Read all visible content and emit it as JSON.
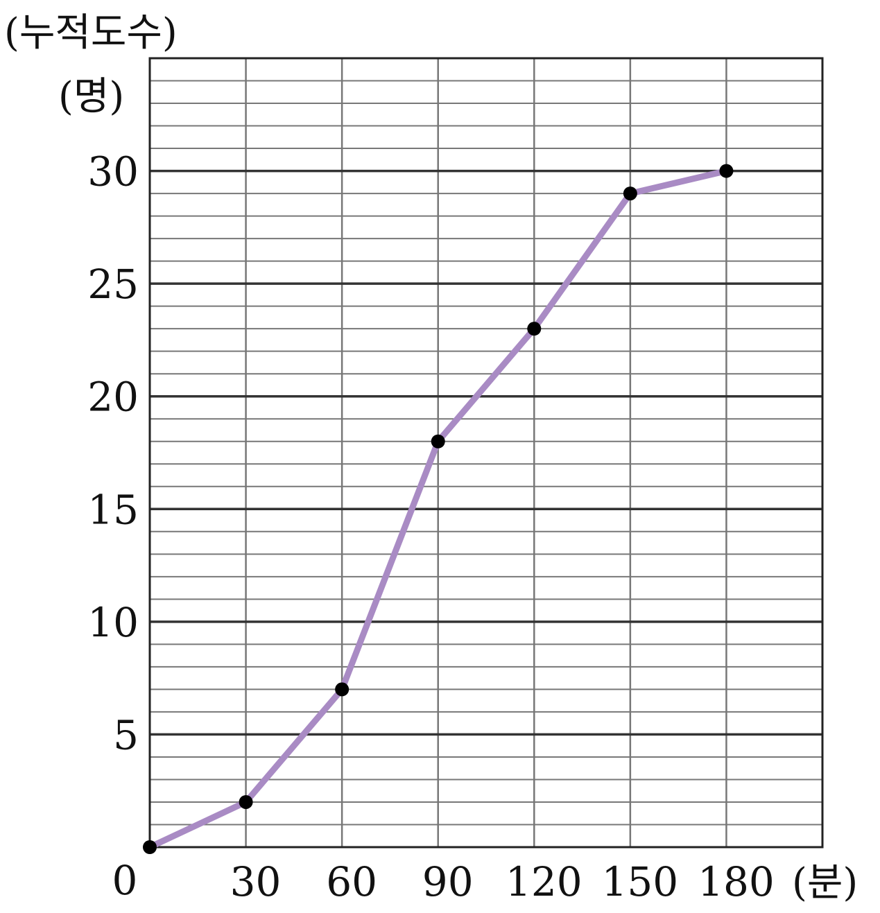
{
  "chart_data": {
    "type": "line",
    "title": "",
    "ylabel_line1": "(누적도수)",
    "ylabel_line2": "(명)",
    "xlabel": "(분)",
    "origin_label": "0",
    "x": [
      0,
      30,
      60,
      90,
      120,
      150,
      180
    ],
    "series": [
      {
        "values": [
          0,
          2,
          7,
          18,
          23,
          29,
          30
        ]
      }
    ],
    "xlim": [
      0,
      210
    ],
    "ylim": [
      0,
      35
    ],
    "x_ticks": [
      30,
      60,
      90,
      120,
      150,
      180
    ],
    "y_ticks": [
      5,
      10,
      15,
      20,
      25,
      30
    ],
    "grid": true,
    "line_color": "#a98bc4",
    "point_color": "#000000"
  }
}
